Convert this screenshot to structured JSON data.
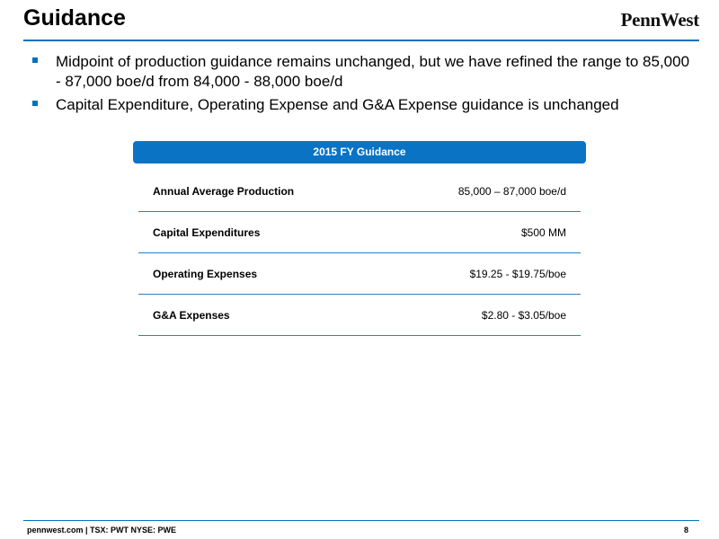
{
  "slide": {
    "title": "Guidance",
    "logo_text": "PennWest",
    "accent_color": "#0072bc"
  },
  "bullets": [
    "Midpoint of production guidance remains unchanged, but we have refined the range to 85,000 - 87,000 boe/d from 84,000 - 88,000 boe/d",
    "Capital Expenditure, Operating Expense and G&A Expense guidance is unchanged"
  ],
  "guidance": {
    "header": "2015 FY Guidance",
    "rows": [
      {
        "label": "Annual Average Production",
        "value": "85,000 – 87,000 boe/d"
      },
      {
        "label": "Capital Expenditures",
        "value": "$500 MM"
      },
      {
        "label": "Operating Expenses",
        "value": "$19.25 - $19.75/boe"
      },
      {
        "label": "G&A Expenses",
        "value": "$2.80 - $3.05/boe"
      }
    ]
  },
  "footer": {
    "left": "pennwest.com | TSX: PWT  NYSE: PWE",
    "page_number": "8"
  }
}
